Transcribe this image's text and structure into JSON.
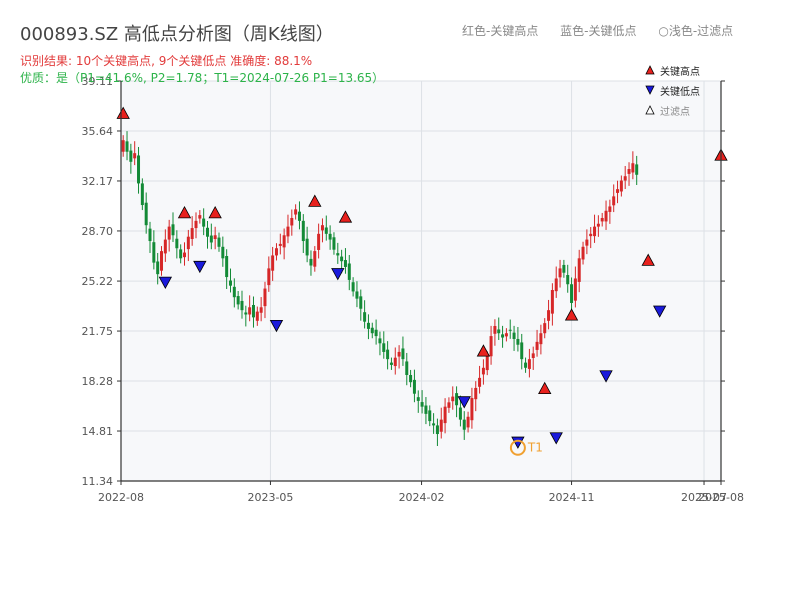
{
  "header": {
    "title": "000893.SZ 高低点分析图（周K线图）",
    "legend_red": "红色-关键高点",
    "legend_blue": "蓝色-关键低点",
    "legend_light": "○浅色-过滤点",
    "result_line": "识别结果: 10个关键高点, 9个关键低点   准确度: 88.1%",
    "quality_line": "优质：是（P1=41.6%, P2=1.78；T1=2024-07-26 P1=13.65）"
  },
  "legend": {
    "high": "关键高点",
    "low": "关键低点",
    "filtered": "过滤点"
  },
  "colors": {
    "up": "#d62728",
    "down": "#138a36",
    "high_marker": "#e8211d",
    "low_marker": "#1a1adb",
    "t1_ring": "#f0a030",
    "plot_bg": "#f7f8fa",
    "grid": "#dde1e6"
  },
  "chart_data": {
    "type": "candlestick",
    "ylim": [
      11.34,
      39.11
    ],
    "yticks": [
      11.34,
      14.81,
      18.28,
      21.75,
      25.22,
      28.7,
      32.17,
      35.64,
      39.11
    ],
    "ytick_labels": [
      "11.34",
      "14.81",
      "18.28",
      "21.75",
      "25.22",
      "28.70",
      "32.17",
      "35.64",
      "39.11"
    ],
    "xlim": [
      "2022-08-01",
      "2025-08-01"
    ],
    "xtick_dates": [
      "2022-08-01",
      "2023-05-01",
      "2024-02-01",
      "2024-11-01",
      "2025-07-01",
      "2025-08-01"
    ],
    "xtick_labels": [
      "2022-08",
      "2023-05",
      "2024-02",
      "2024-11",
      "2025-07",
      "2025-08"
    ],
    "weeks_start": "2022-08-05",
    "closes": [
      35.0,
      34.2,
      33.5,
      34.1,
      32.0,
      30.5,
      29.1,
      28.0,
      26.5,
      25.7,
      27.3,
      28.1,
      29.0,
      28.4,
      27.5,
      26.8,
      27.2,
      28.3,
      28.9,
      29.4,
      29.8,
      29.0,
      28.3,
      27.9,
      28.4,
      27.6,
      26.8,
      25.5,
      24.9,
      24.1,
      23.6,
      23.2,
      22.9,
      23.4,
      22.7,
      23.1,
      23.4,
      24.7,
      26.1,
      27.0,
      27.5,
      27.8,
      28.4,
      29.0,
      29.6,
      30.2,
      29.4,
      28.0,
      27.0,
      26.3,
      27.3,
      28.5,
      29.1,
      28.5,
      28.1,
      27.4,
      27.0,
      26.6,
      26.2,
      25.3,
      24.5,
      24.0,
      23.3,
      22.4,
      21.9,
      21.6,
      21.4,
      20.9,
      20.3,
      19.8,
      19.4,
      19.9,
      20.3,
      19.8,
      18.7,
      18.2,
      17.4,
      16.9,
      16.5,
      16.0,
      15.5,
      15.2,
      14.6,
      15.6,
      16.5,
      16.8,
      17.2,
      16.6,
      15.6,
      14.9,
      15.8,
      17.1,
      17.8,
      18.5,
      19.2,
      20.0,
      21.4,
      22.1,
      21.6,
      21.3,
      21.6,
      21.8,
      21.2,
      20.8,
      19.8,
      19.2,
      19.8,
      20.2,
      21.0,
      21.6,
      22.3,
      23.2,
      24.6,
      25.4,
      26.1,
      25.8,
      25.0,
      23.7,
      25.4,
      26.8,
      27.6,
      28.1,
      28.5,
      29.0,
      29.2,
      29.6,
      30.1,
      30.4,
      31.1,
      31.6,
      32.2,
      32.5,
      33.0,
      33.4,
      32.6
    ],
    "key_highs": [
      {
        "date": "2022-08-05",
        "value": 36.3
      },
      {
        "date": "2022-11-25",
        "value": 29.4
      },
      {
        "date": "2023-01-20",
        "value": 29.4
      },
      {
        "date": "2023-07-21",
        "value": 30.2
      },
      {
        "date": "2023-09-15",
        "value": 29.1
      },
      {
        "date": "2024-05-24",
        "value": 19.8
      },
      {
        "date": "2024-09-13",
        "value": 17.2
      },
      {
        "date": "2024-11-01",
        "value": 22.3
      },
      {
        "date": "2025-03-21",
        "value": 26.1
      },
      {
        "date": "2025-08-01",
        "value": 33.4
      }
    ],
    "key_lows": [
      {
        "date": "2022-10-21",
        "value": 25.7
      },
      {
        "date": "2022-12-23",
        "value": 26.8
      },
      {
        "date": "2023-05-12",
        "value": 22.7
      },
      {
        "date": "2023-09-01",
        "value": 26.3
      },
      {
        "date": "2024-04-19",
        "value": 17.4
      },
      {
        "date": "2024-07-26",
        "value": 14.6
      },
      {
        "date": "2024-10-04",
        "value": 14.9
      },
      {
        "date": "2025-01-03",
        "value": 19.2
      },
      {
        "date": "2025-04-11",
        "value": 23.7
      }
    ],
    "t1": {
      "label": "T1",
      "date": "2024-07-26",
      "value": 13.65
    }
  }
}
